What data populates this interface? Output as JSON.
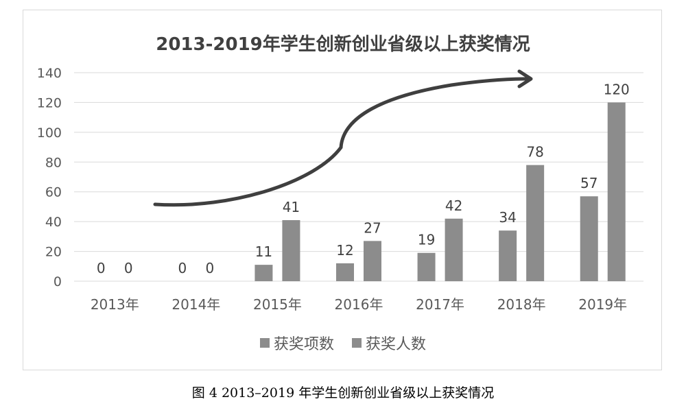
{
  "chart_data": {
    "type": "bar",
    "title": "2013-2019年学生创新创业省级以上获奖情况",
    "categories": [
      "2013年",
      "2014年",
      "2015年",
      "2016年",
      "2017年",
      "2018年",
      "2019年"
    ],
    "series": [
      {
        "name": "获奖项数",
        "values": [
          0,
          0,
          11,
          12,
          19,
          34,
          57
        ],
        "color": "#8c8c8c"
      },
      {
        "name": "获奖人数",
        "values": [
          0,
          0,
          41,
          27,
          42,
          78,
          120
        ],
        "color": "#8c8c8c"
      }
    ],
    "ylim": [
      0,
      140
    ],
    "yticks": [
      0,
      20,
      40,
      60,
      80,
      100,
      120,
      140
    ],
    "grid": true,
    "legend_position": "bottom",
    "annotation": "upward-trend-arrow",
    "data_labels": true
  },
  "caption": "图 4  2013–2019 年学生创新创业省级以上获奖情况",
  "colors": {
    "bar": "#8c8c8c",
    "grid": "#d9d9d9",
    "arrow": "#3f3f3f",
    "text": "#595959"
  }
}
